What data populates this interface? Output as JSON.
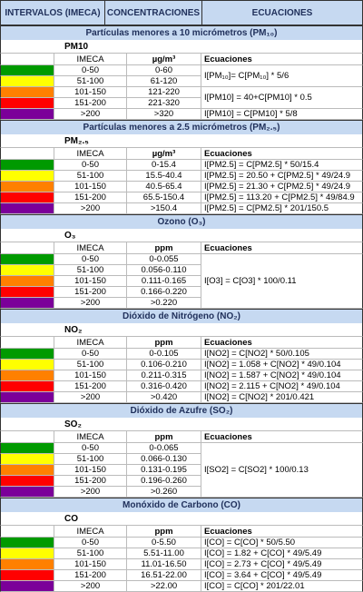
{
  "header": {
    "columns": [
      "INTERVALOS (IMECA)",
      "CONCENTRACIONES",
      "ECUACIONES"
    ]
  },
  "colors": [
    "#009a00",
    "#ffff00",
    "#ff8000",
    "#ff0000",
    "#7b0099"
  ],
  "sections": [
    {
      "title": "Partículas menores a 10 micrómetros (PM₁₀)",
      "label": "PM10",
      "imeca_header": "IMECA",
      "unit": "µg/m³",
      "equation_header": "Ecuaciones",
      "ranges": [
        "0-50",
        "51-100",
        "101-150",
        "151-200",
        ">200"
      ],
      "concentrations": [
        "0-60",
        "61-120",
        "121-220",
        "221-320",
        ">320"
      ],
      "equations": [
        "I[PM₁₀]= C[PM₁₀] * 5/6",
        null,
        "I[PM10] = 40+C[PM10] * 0.5",
        null,
        "I[PM10] = C[PM10] * 5/8"
      ]
    },
    {
      "title": "Partículas menores a 2.5 micrómetros (PM₂.₅)",
      "label": "PM₂.₅",
      "imeca_header": "IMECA",
      "unit": "µg/m³",
      "equation_header": "Ecuaciones",
      "ranges": [
        "0-50",
        "51-100",
        "101-150",
        "151-200",
        ">200"
      ],
      "concentrations": [
        "0-15.4",
        "15.5-40.4",
        "40.5-65.4",
        "65.5-150.4",
        ">150.4"
      ],
      "equations": [
        "I[PM2.5] = C[PM2.5] * 50/15.4",
        "I[PM2.5] = 20.50 + C[PM2.5] * 49/24.9",
        "I[PM2.5] = 21.30 + C[PM2.5] * 49/24.9",
        "I[PM2.5] = 113.20 + C[PM2.5] * 49/84.9",
        "I[PM2.5] = C[PM2.5] * 201/150.5"
      ]
    },
    {
      "title": "Ozono (O₃)",
      "label": "O₃",
      "imeca_header": "IMECA",
      "unit": "ppm",
      "equation_header": "Ecuaciones",
      "ranges": [
        "0-50",
        "51-100",
        "101-150",
        "151-200",
        ">200"
      ],
      "concentrations": [
        "0-0.055",
        "0.056-0.110",
        "0.111-0.165",
        "0.166-0.220",
        ">0.220"
      ],
      "equations": [
        "I[O3] = C[O3] * 100/0.11",
        null,
        null,
        null,
        null
      ]
    },
    {
      "title": "Dióxido de Nitrógeno (NO₂)",
      "label": "NO₂",
      "imeca_header": "IMECA",
      "unit": "ppm",
      "equation_header": "Ecuaciones",
      "ranges": [
        "0-50",
        "51-100",
        "101-150",
        "151-200",
        ">200"
      ],
      "concentrations": [
        "0-0.105",
        "0.106-0.210",
        "0.211-0.315",
        "0.316-0.420",
        ">0.420"
      ],
      "equations": [
        "I[NO2] = C[NO2] * 50/0.105",
        "I[NO2] = 1.058 + C[NO2] * 49/0.104",
        "I[NO2] = 1.587 + C[NO2] * 49/0.104",
        "I[NO2] = 2.115 + C[NO2] * 49/0.104",
        "I[NO2] = C[NO2] * 201/0.421"
      ]
    },
    {
      "title": "Dióxido de Azufre (SO₂)",
      "label": "SO₂",
      "imeca_header": "IMECA",
      "unit": "ppm",
      "equation_header": "Ecuaciones",
      "ranges": [
        "0-50",
        "51-100",
        "101-150",
        "151-200",
        ">200"
      ],
      "concentrations": [
        "0-0.065",
        "0.066-0.130",
        "0.131-0.195",
        "0.196-0.260",
        ">0.260"
      ],
      "equations": [
        "I[SO2] = C[SO2] * 100/0.13",
        null,
        null,
        null,
        null
      ]
    },
    {
      "title": "Monóxido de Carbono (CO)",
      "label": "CO",
      "imeca_header": "IMECA",
      "unit": "ppm",
      "equation_header": "Ecuaciones",
      "ranges": [
        "0-50",
        "51-100",
        "101-150",
        "151-200",
        ">200"
      ],
      "concentrations": [
        "0-5.50",
        "5.51-11.00",
        "11.01-16.50",
        "16.51-22.00",
        ">22.00"
      ],
      "equations": [
        "I[CO] = C[CO] * 50/5.50",
        "I[CO] = 1.82 + C[CO] * 49/5.49",
        "I[CO] = 2.73 + C[CO] * 49/5.49",
        "I[CO] = 3.64 + C[CO] * 49/5.49",
        "I[CO] = C[CO] * 201/22.01"
      ]
    }
  ]
}
